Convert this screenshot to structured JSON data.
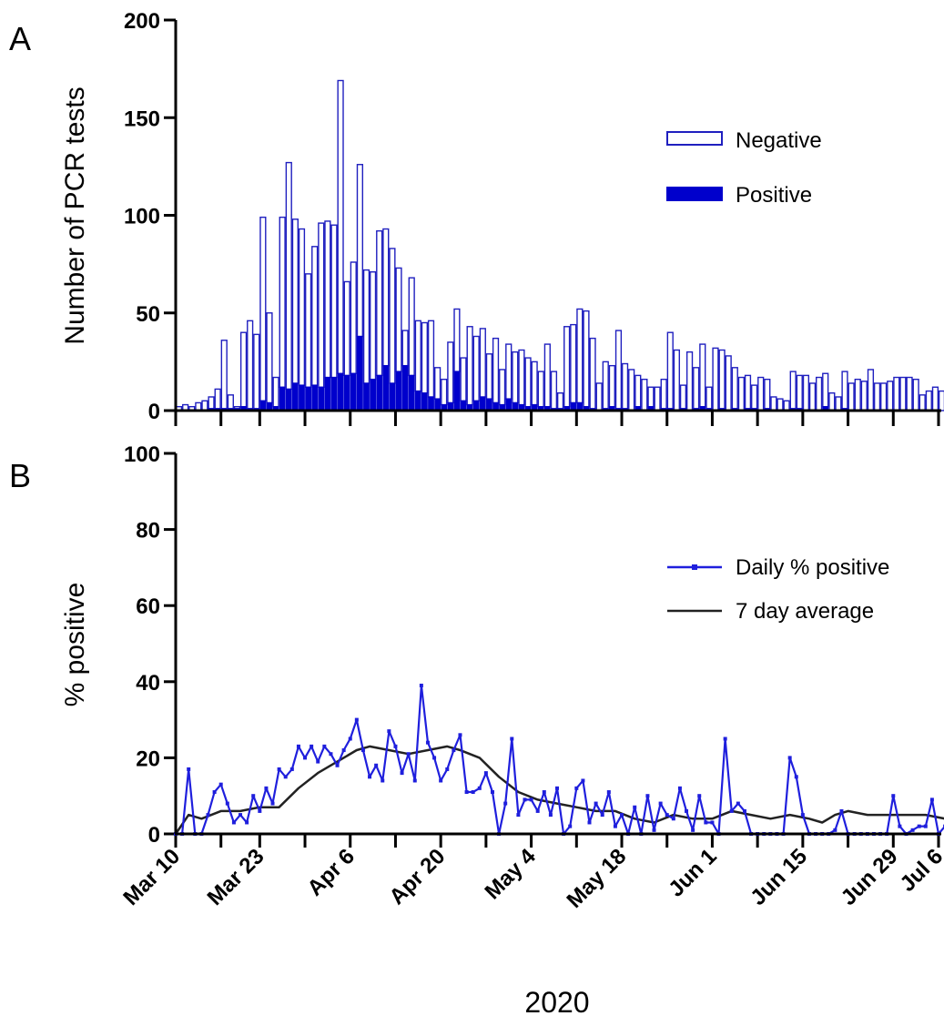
{
  "chart_data": [
    {
      "panel": "A",
      "type": "bar",
      "stacked": true,
      "ylabel": "Number of PCR tests",
      "ylim": [
        0,
        200
      ],
      "yticks": [
        0,
        50,
        100,
        150,
        200
      ],
      "x_start_date": "2020-03-10",
      "xlim_dates": [
        "2020-03-10",
        "2020-07-06"
      ],
      "xtick_dates": [
        "2020-03-10",
        "2020-03-17",
        "2020-03-23",
        "2020-03-30",
        "2020-04-06",
        "2020-04-13",
        "2020-04-20",
        "2020-04-27",
        "2020-05-04",
        "2020-05-11",
        "2020-05-18",
        "2020-05-25",
        "2020-06-01",
        "2020-06-08",
        "2020-06-15",
        "2020-06-22",
        "2020-06-29",
        "2020-07-06"
      ],
      "legend": "top-right",
      "series": [
        {
          "name": "Negative",
          "style": "outline",
          "color": "#1f1fbf",
          "values": [
            2,
            3,
            2,
            4,
            5,
            6,
            10,
            35,
            7,
            1,
            38,
            45,
            38,
            94,
            46,
            15,
            87,
            116,
            84,
            80,
            58,
            71,
            84,
            80,
            78,
            150,
            48,
            57,
            88,
            58,
            55,
            74,
            70,
            69,
            53,
            18,
            50,
            36,
            36,
            39,
            16,
            13,
            31,
            32,
            22,
            40,
            33,
            35,
            23,
            33,
            18,
            28,
            26,
            28,
            25,
            22,
            18,
            32,
            19,
            8,
            41,
            40,
            48,
            49,
            36,
            14,
            24,
            21,
            40,
            23,
            21,
            16,
            16,
            10,
            12,
            15,
            39,
            31,
            12,
            30,
            21,
            32,
            11,
            32,
            30,
            28,
            21,
            17,
            17,
            12,
            17,
            15,
            7,
            6,
            5,
            19,
            17,
            18,
            14,
            17,
            17,
            9,
            7,
            19,
            14,
            16,
            15,
            21,
            14,
            14,
            15,
            17,
            17,
            17,
            16,
            8,
            10,
            12,
            10,
            6,
            11,
            10,
            12,
            7,
            3,
            4,
            5,
            6,
            9,
            16,
            14,
            4,
            12,
            6,
            5,
            7,
            8
          ]
        },
        {
          "name": "Positive",
          "style": "filled",
          "color": "#0000cc",
          "values": [
            0,
            0,
            0,
            0,
            0,
            1,
            1,
            1,
            1,
            1,
            2,
            1,
            1,
            5,
            4,
            2,
            12,
            11,
            14,
            13,
            12,
            13,
            12,
            17,
            17,
            19,
            18,
            19,
            38,
            14,
            16,
            18,
            23,
            14,
            20,
            23,
            18,
            10,
            9,
            7,
            6,
            3,
            4,
            20,
            5,
            3,
            5,
            7,
            6,
            4,
            3,
            6,
            4,
            3,
            2,
            3,
            2,
            2,
            1,
            1,
            2,
            4,
            4,
            2,
            1,
            0,
            1,
            2,
            1,
            1,
            0,
            2,
            0,
            2,
            0,
            1,
            1,
            0,
            1,
            0,
            1,
            2,
            1,
            0,
            1,
            0,
            1,
            0,
            1,
            1,
            0,
            1,
            0,
            0,
            0,
            1,
            1,
            0,
            0,
            0,
            2,
            0,
            0,
            1,
            0,
            0,
            0,
            0,
            0,
            0,
            0,
            0,
            0,
            0,
            0,
            0,
            0,
            0,
            0,
            0,
            0,
            1,
            0,
            0,
            0,
            0,
            0,
            0,
            0,
            0,
            0,
            0,
            0,
            0,
            0,
            0,
            0
          ]
        }
      ]
    },
    {
      "panel": "B",
      "type": "line",
      "ylabel": "% positive",
      "xlabel": "2020",
      "ylim": [
        0,
        100
      ],
      "yticks": [
        0,
        20,
        40,
        60,
        80,
        100
      ],
      "x_start_date": "2020-03-10",
      "xlim_dates": [
        "2020-03-10",
        "2020-07-06"
      ],
      "xtick_labels": [
        "Mar 10",
        "Mar 23",
        "Apr 6",
        "Apr 20",
        "May 4",
        "May 18",
        "Jun 1",
        "Jun 15",
        "Jun 29",
        "Jul 6"
      ],
      "xtick_label_dates": [
        "2020-03-10",
        "2020-03-23",
        "2020-04-06",
        "2020-04-20",
        "2020-05-04",
        "2020-05-18",
        "2020-06-01",
        "2020-06-15",
        "2020-06-29",
        "2020-07-06"
      ],
      "legend": "top-right",
      "series": [
        {
          "name": "Daily % positive",
          "color": "#1f1fdd",
          "marker": "square",
          "values": [
            0,
            0,
            17,
            0,
            0,
            5,
            11,
            13,
            8,
            3,
            5,
            3,
            10,
            6,
            12,
            8,
            17,
            15,
            17,
            23,
            20,
            23,
            19,
            23,
            21,
            18,
            22,
            25,
            30,
            22,
            15,
            18,
            14,
            27,
            23,
            16,
            21,
            14,
            39,
            24,
            20,
            14,
            17,
            22,
            26,
            11,
            11,
            12,
            16,
            11,
            0,
            8,
            25,
            5,
            9,
            9,
            6,
            11,
            5,
            12,
            0,
            2,
            12,
            14,
            3,
            8,
            5,
            11,
            2,
            5,
            0,
            7,
            0,
            10,
            1,
            8,
            5,
            4,
            12,
            6,
            1,
            10,
            3,
            3,
            0,
            25,
            6,
            8,
            6,
            0,
            0,
            0,
            0,
            0,
            0,
            20,
            15,
            5,
            0,
            0,
            0,
            0,
            1,
            6,
            0,
            0,
            0,
            0,
            0,
            0,
            0,
            10,
            2,
            0,
            1,
            2,
            2,
            9,
            0,
            2,
            0,
            0,
            0,
            0,
            0,
            0,
            0,
            0,
            0,
            0,
            0,
            0,
            0,
            0,
            0,
            0,
            0
          ]
        },
        {
          "name": "7 day average",
          "color": "#222222",
          "points": [
            [
              0,
              0
            ],
            [
              2,
              5
            ],
            [
              4,
              4
            ],
            [
              7,
              6
            ],
            [
              10,
              6
            ],
            [
              13,
              7
            ],
            [
              16,
              7
            ],
            [
              19,
              12
            ],
            [
              22,
              16
            ],
            [
              25,
              19
            ],
            [
              28,
              22
            ],
            [
              30,
              23
            ],
            [
              33,
              22
            ],
            [
              36,
              21
            ],
            [
              39,
              22
            ],
            [
              42,
              23
            ],
            [
              44,
              22
            ],
            [
              47,
              20
            ],
            [
              50,
              15
            ],
            [
              53,
              11
            ],
            [
              56,
              9
            ],
            [
              59,
              8
            ],
            [
              62,
              7
            ],
            [
              65,
              6
            ],
            [
              68,
              6
            ],
            [
              71,
              4
            ],
            [
              74,
              3
            ],
            [
              77,
              5
            ],
            [
              80,
              4
            ],
            [
              83,
              4
            ],
            [
              86,
              6
            ],
            [
              89,
              5
            ],
            [
              92,
              4
            ],
            [
              95,
              5
            ],
            [
              98,
              4
            ],
            [
              100,
              3
            ],
            [
              101,
              4
            ],
            [
              102,
              5
            ],
            [
              104,
              6
            ],
            [
              107,
              5
            ],
            [
              110,
              5
            ],
            [
              113,
              5
            ],
            [
              116,
              5
            ],
            [
              119,
              4
            ],
            [
              120,
              1
            ],
            [
              122,
              1
            ],
            [
              125,
              1
            ],
            [
              127,
              2
            ],
            [
              128,
              1
            ],
            [
              131,
              1
            ],
            [
              133,
              1
            ],
            [
              135,
              0
            ],
            [
              138,
              0
            ]
          ]
        }
      ]
    }
  ],
  "panel_a_letter": "A",
  "panel_b_letter": "B"
}
